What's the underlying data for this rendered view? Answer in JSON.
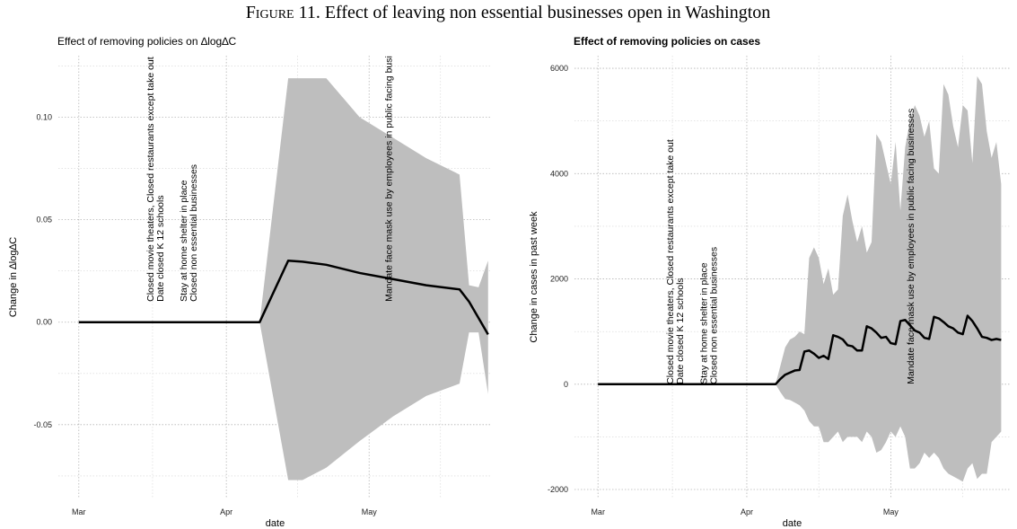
{
  "caption_label": "Figure 11.",
  "caption_text": "Effect of leaving non essential businesses open in Washington",
  "chart_data": [
    {
      "type": "line",
      "title": "Effect of removing policies on ∆log∆C",
      "x_label": "date",
      "y_label": "Change in ∆log∆C",
      "x": [
        0,
        38,
        44,
        47,
        52,
        59,
        66,
        73,
        80,
        82,
        84,
        86
      ],
      "values": [
        0,
        0,
        0.03,
        0.0295,
        0.028,
        0.024,
        0.021,
        0.018,
        0.016,
        0.01,
        0.002,
        -0.006
      ],
      "upper": [
        0,
        0,
        0.119,
        0.119,
        0.119,
        0.1,
        0.09,
        0.08,
        0.072,
        0.018,
        0.017,
        0.03
      ],
      "lower": [
        0,
        0,
        -0.077,
        -0.077,
        -0.071,
        -0.058,
        -0.046,
        -0.036,
        -0.03,
        -0.005,
        -0.005,
        -0.035
      ],
      "color": "#000000",
      "band_color": "#bebebe",
      "xlim": [
        -4.3,
        86.8
      ],
      "xticks": [
        {
          "value": 0,
          "label": "Mar"
        },
        {
          "value": 31,
          "label": "Apr"
        },
        {
          "value": 61,
          "label": "May"
        }
      ],
      "ylim": [
        -0.086,
        0.13
      ],
      "yticks": [
        {
          "value": -0.05,
          "label": "-0.05"
        },
        {
          "value": 0,
          "label": "0.00"
        },
        {
          "value": 0.05,
          "label": "0.05"
        },
        {
          "value": 0.1,
          "label": "0.10"
        }
      ],
      "grid": true,
      "annotations": [
        {
          "x": 16,
          "y": 0.01,
          "lines": [
            "Closed movie theaters, Closed restaurants except take out",
            "Date closed K 12 schools"
          ]
        },
        {
          "x": 23,
          "y": 0.01,
          "lines": [
            "Stay at home  shelter in place",
            "Closed non essential businesses"
          ]
        },
        {
          "x": 65,
          "y": 0.01,
          "lines": [
            "Mandate face mask use by employees in public facing businesses"
          ]
        }
      ]
    },
    {
      "type": "line",
      "title": "Effect of removing policies on cases",
      "x_label": "date",
      "y_label": "Change in cases in past week",
      "x": [
        0,
        37,
        38,
        39,
        40,
        41,
        42,
        43,
        44,
        45,
        46,
        47,
        48,
        49,
        50,
        51,
        52,
        53,
        54,
        55,
        56,
        57,
        58,
        59,
        60,
        61,
        62,
        63,
        64,
        65,
        66,
        67,
        68,
        69,
        70,
        71,
        72,
        73,
        74,
        75,
        76,
        77,
        78,
        79,
        80,
        81,
        82,
        83,
        84
      ],
      "values": [
        0,
        0,
        100,
        180,
        220,
        260,
        270,
        620,
        640,
        580,
        500,
        540,
        480,
        930,
        900,
        850,
        740,
        720,
        640,
        640,
        1100,
        1060,
        980,
        880,
        900,
        780,
        760,
        1200,
        1220,
        1120,
        1020,
        980,
        880,
        860,
        1280,
        1250,
        1180,
        1100,
        1060,
        980,
        950,
        1300,
        1200,
        1060,
        900,
        880,
        840,
        860,
        840
      ],
      "upper": [
        0,
        0,
        350,
        700,
        850,
        900,
        1000,
        950,
        2400,
        2600,
        2400,
        1900,
        2200,
        1700,
        1800,
        3200,
        3600,
        3100,
        2700,
        3000,
        2500,
        2700,
        4750,
        4600,
        4200,
        3800,
        4600,
        3300,
        4500,
        5000,
        5300,
        5100,
        4700,
        5000,
        4100,
        4000,
        5700,
        5500,
        4900,
        4500,
        5300,
        5200,
        4200,
        5850,
        5700,
        4800,
        4300,
        4600,
        3800
      ],
      "lower": [
        0,
        0,
        -150,
        -280,
        -300,
        -350,
        -400,
        -500,
        -700,
        -800,
        -800,
        -1100,
        -1100,
        -1000,
        -900,
        -1100,
        -1000,
        -1000,
        -1000,
        -1100,
        -900,
        -1000,
        -1300,
        -1250,
        -1100,
        -900,
        -1000,
        -800,
        -1000,
        -1600,
        -1600,
        -1500,
        -1300,
        -1400,
        -1300,
        -1400,
        -1600,
        -1700,
        -1750,
        -1800,
        -1850,
        -1600,
        -1500,
        -1800,
        -1700,
        -1700,
        -1100,
        -1000,
        -900
      ],
      "color": "#000000",
      "band_color": "#bebebe",
      "xlim": [
        -4.9,
        85.8
      ],
      "xticks": [
        {
          "value": 0,
          "label": "Mar"
        },
        {
          "value": 31,
          "label": "Apr"
        },
        {
          "value": 61,
          "label": "May"
        }
      ],
      "ylim": [
        -2170,
        6240
      ],
      "yticks": [
        -2000,
        0,
        2000,
        4000,
        6000
      ],
      "grid": true,
      "annotations": [
        {
          "x": 16,
          "y": 0,
          "lines": [
            "Closed movie theaters, Closed restaurants except take out",
            "Date closed K 12 schools"
          ]
        },
        {
          "x": 23,
          "y": 0,
          "lines": [
            "Stay at home  shelter in place",
            "Closed non essential businesses"
          ]
        },
        {
          "x": 65,
          "y": 0,
          "lines": [
            "Mandate face mask use by employees in public facing businesses"
          ]
        }
      ]
    }
  ]
}
